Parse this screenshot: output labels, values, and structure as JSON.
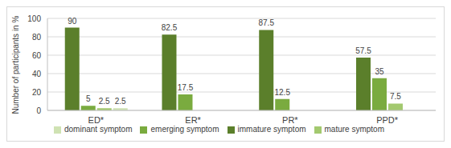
{
  "chart_data": {
    "type": "bar",
    "y_label": "Number of participants in %",
    "categories": [
      "ED*",
      "ER*",
      "PR*",
      "PPD*"
    ],
    "series": [
      {
        "name": "immature symptom",
        "color": "#5b7f2b",
        "values": [
          90,
          82.5,
          87.5,
          57.5
        ]
      },
      {
        "name": "emerging symptom",
        "color": "#7aab3f",
        "values": [
          5,
          17.5,
          12.5,
          35
        ]
      },
      {
        "name": "mature symptom",
        "color": "#a3c96f",
        "values": [
          2.5,
          0,
          0,
          7.5
        ]
      },
      {
        "name": "dominant symptom",
        "color": "#cfe2b3",
        "values": [
          2.5,
          0,
          0,
          0
        ]
      }
    ],
    "ylim": [
      0,
      100
    ],
    "yticks": [
      0,
      20,
      40,
      60,
      80,
      100
    ],
    "grid": true,
    "legend": "bottom",
    "data_labels": true
  }
}
